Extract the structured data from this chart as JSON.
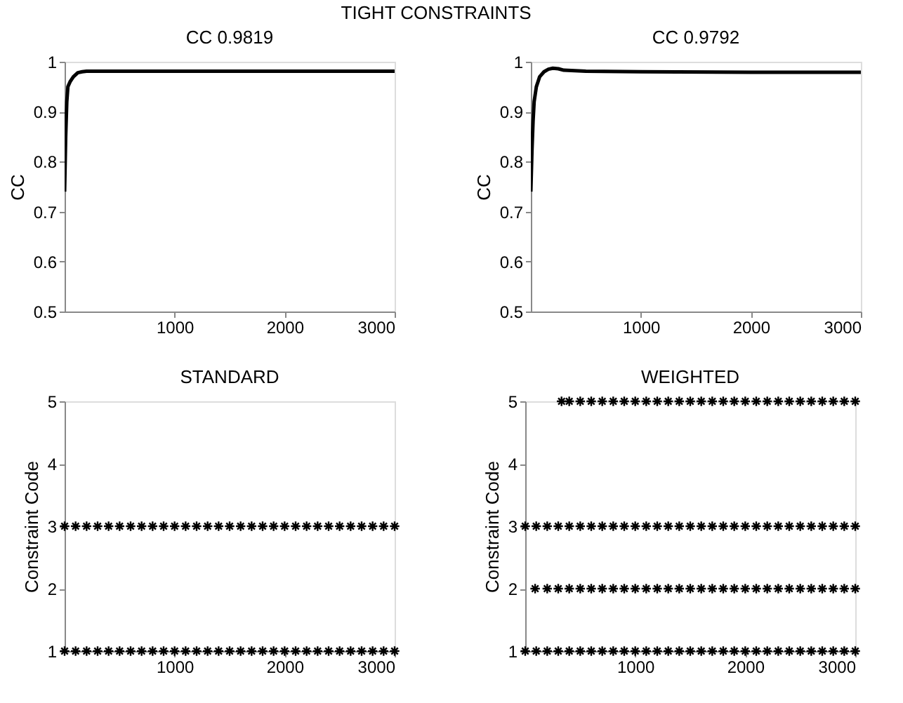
{
  "chart_data": [
    {
      "type": "line",
      "title": "CC 0.9819",
      "annotations": [
        "TIGHT CONSTRAINTS"
      ],
      "ylabel": "CC",
      "xlim": [
        0,
        3000
      ],
      "xticks": [
        1000,
        2000,
        3000
      ],
      "ylim": [
        0.5,
        1
      ],
      "yticks": [
        0.5,
        0.6,
        0.7,
        0.8,
        0.9,
        1
      ],
      "grid": false,
      "marker": "none",
      "line_style": "solid",
      "series": [
        {
          "color": "#000000",
          "x": [
            0,
            10,
            20,
            30,
            50,
            80,
            120,
            160,
            200,
            300,
            500,
            1000,
            2000,
            3000
          ],
          "values": [
            0.74,
            0.85,
            0.92,
            0.95,
            0.96,
            0.97,
            0.978,
            0.98,
            0.981,
            0.981,
            0.981,
            0.981,
            0.981,
            0.981
          ]
        }
      ]
    },
    {
      "type": "line",
      "title": "CC 0.9792",
      "ylabel": "CC",
      "xlim": [
        0,
        3000
      ],
      "xticks": [
        1000,
        2000,
        3000
      ],
      "ylim": [
        0.5,
        1
      ],
      "yticks": [
        0.5,
        0.6,
        0.7,
        0.8,
        0.9,
        1
      ],
      "grid": false,
      "marker": "none",
      "line_style": "solid",
      "series": [
        {
          "color": "#000000",
          "x": [
            0,
            10,
            20,
            30,
            50,
            80,
            120,
            160,
            200,
            250,
            300,
            500,
            1000,
            2000,
            3000
          ],
          "values": [
            0.74,
            0.82,
            0.88,
            0.92,
            0.95,
            0.97,
            0.98,
            0.985,
            0.987,
            0.986,
            0.983,
            0.981,
            0.98,
            0.979,
            0.979
          ]
        }
      ]
    },
    {
      "type": "scatter",
      "title": "STANDARD",
      "ylabel": "Constraint Code",
      "xlim": [
        0,
        3000
      ],
      "xticks": [
        1000,
        2000,
        3000
      ],
      "ylim": [
        1,
        5
      ],
      "yticks": [
        1,
        2,
        3,
        4,
        5
      ],
      "grid": false,
      "marker": "cross",
      "series": [
        {
          "color": "#000000",
          "x": [
            0,
            100,
            200,
            300,
            400,
            500,
            600,
            700,
            800,
            900,
            1000,
            1100,
            1200,
            1300,
            1400,
            1500,
            1600,
            1700,
            1800,
            1900,
            2000,
            2100,
            2200,
            2300,
            2400,
            2500,
            2600,
            2700,
            2800,
            2900,
            3000
          ],
          "values": [
            3,
            3,
            3,
            3,
            3,
            3,
            3,
            3,
            3,
            3,
            3,
            3,
            3,
            3,
            3,
            3,
            3,
            3,
            3,
            3,
            3,
            3,
            3,
            3,
            3,
            3,
            3,
            3,
            3,
            3,
            3
          ]
        },
        {
          "color": "#000000",
          "x": [
            0,
            100,
            200,
            300,
            400,
            500,
            600,
            700,
            800,
            900,
            1000,
            1100,
            1200,
            1300,
            1400,
            1500,
            1600,
            1700,
            1800,
            1900,
            2000,
            2100,
            2200,
            2300,
            2400,
            2500,
            2600,
            2700,
            2800,
            2900,
            3000
          ],
          "values": [
            1,
            1,
            1,
            1,
            1,
            1,
            1,
            1,
            1,
            1,
            1,
            1,
            1,
            1,
            1,
            1,
            1,
            1,
            1,
            1,
            1,
            1,
            1,
            1,
            1,
            1,
            1,
            1,
            1,
            1,
            1
          ]
        }
      ]
    },
    {
      "type": "scatter",
      "title": "WEIGHTED",
      "ylabel": "Constraint Code",
      "xlim": [
        0,
        3000
      ],
      "xticks": [
        1000,
        2000,
        3000
      ],
      "ylim": [
        1,
        5
      ],
      "yticks": [
        1,
        2,
        3,
        4,
        5
      ],
      "grid": false,
      "marker": "cross",
      "series": [
        {
          "color": "#000000",
          "x": [
            330,
            400,
            500,
            600,
            700,
            800,
            900,
            1000,
            1100,
            1200,
            1300,
            1400,
            1500,
            1600,
            1700,
            1800,
            1900,
            2000,
            2100,
            2200,
            2300,
            2400,
            2500,
            2600,
            2700,
            2800,
            2900,
            3000
          ],
          "values": [
            5,
            5,
            5,
            5,
            5,
            5,
            5,
            5,
            5,
            5,
            5,
            5,
            5,
            5,
            5,
            5,
            5,
            5,
            5,
            5,
            5,
            5,
            5,
            5,
            5,
            5,
            5,
            5
          ]
        },
        {
          "color": "#000000",
          "x": [
            0,
            100,
            200,
            300,
            400,
            500,
            600,
            700,
            800,
            900,
            1000,
            1100,
            1200,
            1300,
            1400,
            1500,
            1600,
            1700,
            1800,
            1900,
            2000,
            2100,
            2200,
            2300,
            2400,
            2500,
            2600,
            2700,
            2800,
            2900,
            3000
          ],
          "values": [
            3,
            3,
            3,
            3,
            3,
            3,
            3,
            3,
            3,
            3,
            3,
            3,
            3,
            3,
            3,
            3,
            3,
            3,
            3,
            3,
            3,
            3,
            3,
            3,
            3,
            3,
            3,
            3,
            3,
            3,
            3
          ]
        },
        {
          "color": "#000000",
          "x": [
            90,
            200,
            300,
            400,
            500,
            600,
            700,
            800,
            900,
            1000,
            1100,
            1200,
            1300,
            1400,
            1500,
            1600,
            1700,
            1800,
            1900,
            2000,
            2100,
            2200,
            2300,
            2400,
            2500,
            2600,
            2700,
            2800,
            2900,
            3000
          ],
          "values": [
            2,
            2,
            2,
            2,
            2,
            2,
            2,
            2,
            2,
            2,
            2,
            2,
            2,
            2,
            2,
            2,
            2,
            2,
            2,
            2,
            2,
            2,
            2,
            2,
            2,
            2,
            2,
            2,
            2,
            2
          ]
        },
        {
          "color": "#000000",
          "x": [
            0,
            100,
            200,
            300,
            400,
            500,
            600,
            700,
            800,
            900,
            1000,
            1100,
            1200,
            1300,
            1400,
            1500,
            1600,
            1700,
            1800,
            1900,
            2000,
            2100,
            2200,
            2300,
            2400,
            2500,
            2600,
            2700,
            2800,
            2900,
            3000
          ],
          "values": [
            1,
            1,
            1,
            1,
            1,
            1,
            1,
            1,
            1,
            1,
            1,
            1,
            1,
            1,
            1,
            1,
            1,
            1,
            1,
            1,
            1,
            1,
            1,
            1,
            1,
            1,
            1,
            1,
            1,
            1,
            1
          ]
        }
      ]
    }
  ]
}
